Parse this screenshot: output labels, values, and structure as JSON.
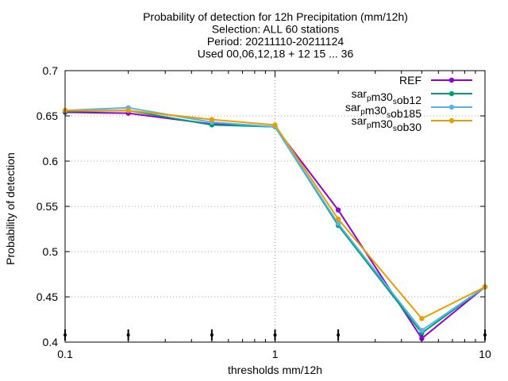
{
  "chart_data": {
    "type": "line",
    "title_lines": [
      "Probability of detection  for 12h Precipitation (mm/12h)",
      "Selection: ALL     60 stations",
      "Period: 20211110-20211124",
      "Used 00,06,12,18 + 12 15 ... 36"
    ],
    "xlabel": "thresholds mm/12h",
    "ylabel": "Probability of detection",
    "xscale": "log",
    "xlim": [
      0.1,
      10
    ],
    "ylim": [
      0.4,
      0.7
    ],
    "x_ticks": [
      0.1,
      1,
      10
    ],
    "x_tick_labels": [
      "0.1",
      "1",
      "10"
    ],
    "y_ticks": [
      0.4,
      0.45,
      0.5,
      0.55,
      0.6,
      0.65,
      0.7
    ],
    "y_tick_labels": [
      "0.4",
      "0.45",
      "0.5",
      "0.55",
      "0.6",
      "0.65",
      "0.7"
    ],
    "grid": true,
    "legend_position": "top-right",
    "x": [
      0.1,
      0.2,
      0.5,
      1,
      2,
      5,
      10
    ],
    "threshold_markers_x": [
      0.1,
      0.2,
      0.5,
      1,
      2,
      5,
      10
    ],
    "series": [
      {
        "name": "REF",
        "legend_parts": [
          {
            "text": "REF",
            "sub": false
          }
        ],
        "color": "#9400d3",
        "values": [
          0.654,
          0.653,
          0.641,
          0.638,
          0.546,
          0.404,
          0.461
        ]
      },
      {
        "name": "sar_pm30_sob12",
        "legend_parts": [
          {
            "text": "sar",
            "sub": false
          },
          {
            "text": "p",
            "sub": true
          },
          {
            "text": "m30",
            "sub": false
          },
          {
            "text": "s",
            "sub": true
          },
          {
            "text": "ob12",
            "sub": false
          }
        ],
        "color": "#009e73",
        "values": [
          0.655,
          0.656,
          0.64,
          0.638,
          0.529,
          0.41,
          0.461
        ]
      },
      {
        "name": "sar_pm30_sob185",
        "legend_parts": [
          {
            "text": "sar",
            "sub": false
          },
          {
            "text": "p",
            "sub": true
          },
          {
            "text": "m30",
            "sub": false
          },
          {
            "text": "s",
            "sub": true
          },
          {
            "text": "ob185",
            "sub": false
          }
        ],
        "color": "#56b4e9",
        "values": [
          0.656,
          0.659,
          0.643,
          0.638,
          0.531,
          0.413,
          0.461
        ]
      },
      {
        "name": "sar_pm30_sob30",
        "legend_parts": [
          {
            "text": "sar",
            "sub": false
          },
          {
            "text": "p",
            "sub": true
          },
          {
            "text": "m30",
            "sub": false
          },
          {
            "text": "s",
            "sub": true
          },
          {
            "text": "ob30",
            "sub": false
          }
        ],
        "color": "#e69f00",
        "values": [
          0.656,
          0.656,
          0.646,
          0.64,
          0.536,
          0.426,
          0.461
        ]
      }
    ]
  }
}
